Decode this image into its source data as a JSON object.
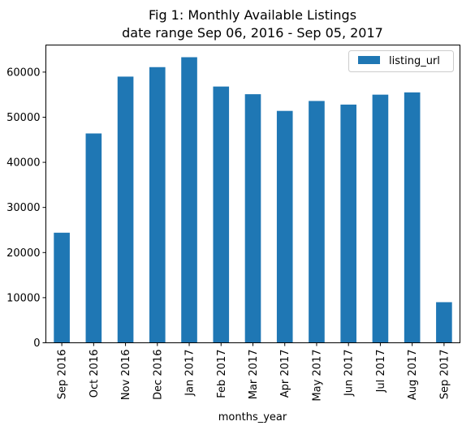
{
  "chart_data": {
    "type": "bar",
    "title": "Fig 1: Monthly Available Listings",
    "subtitle": "date range Sep 06, 2016 - Sep 05, 2017",
    "xlabel": "months_year",
    "ylabel": "",
    "categories": [
      "Sep 2016",
      "Oct 2016",
      "Nov 2016",
      "Dec 2016",
      "Jan 2017",
      "Feb 2017",
      "Mar 2017",
      "Apr 2017",
      "May 2017",
      "Jun 2017",
      "Jul 2017",
      "Aug 2017",
      "Sep 2017"
    ],
    "series": [
      {
        "name": "listing_url",
        "color": "#1f77b4",
        "values": [
          24400,
          46400,
          59000,
          61100,
          63300,
          56800,
          55100,
          51400,
          53600,
          52800,
          55000,
          55500,
          9000
        ]
      }
    ],
    "ylim": [
      0,
      66000
    ],
    "yticks": [
      0,
      10000,
      20000,
      30000,
      40000,
      50000,
      60000
    ],
    "legend_position": "top-right",
    "grid": false
  }
}
